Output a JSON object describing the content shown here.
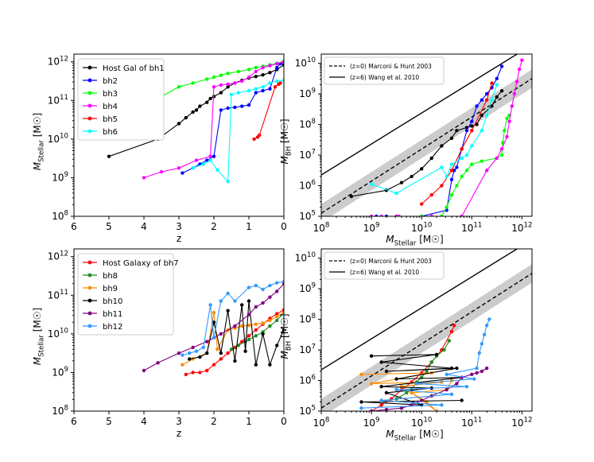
{
  "chart_data": [
    {
      "type": "line",
      "panel": "top-left",
      "xlabel": "z",
      "ylabel_main": "M",
      "ylabel_sub": "Stellar",
      "ylabel_unit": "[M☉]",
      "x_reversed": true,
      "xlim": [
        6,
        0
      ],
      "ylim_log10": [
        8,
        12.2
      ],
      "x_ticks": [
        "6",
        "5",
        "4",
        "3",
        "2",
        "1",
        "0"
      ],
      "y_ticks": [
        {
          "base": "10",
          "exp": "8"
        },
        {
          "base": "10",
          "exp": "9"
        },
        {
          "base": "10",
          "exp": "10"
        },
        {
          "base": "10",
          "exp": "11"
        },
        {
          "base": "10",
          "exp": "12"
        }
      ],
      "legend_position": "upper-left",
      "series": [
        {
          "name": "Host Gal of bh1",
          "color": "#000000",
          "z": [
            5.0,
            3.6,
            3.0,
            2.8,
            2.6,
            2.5,
            2.4,
            2.2,
            2.1,
            2.0,
            1.8,
            1.6,
            1.4,
            1.2,
            1.0,
            0.8,
            0.6,
            0.4,
            0.2,
            0.0
          ],
          "log10M": [
            9.55,
            10.0,
            10.4,
            10.55,
            10.7,
            10.75,
            10.85,
            10.95,
            11.05,
            11.1,
            11.2,
            11.35,
            11.45,
            11.52,
            11.58,
            11.62,
            11.66,
            11.72,
            11.8,
            11.92
          ]
        },
        {
          "name": "bh2",
          "color": "#0000ff",
          "z": [
            2.9,
            2.6,
            2.4,
            2.2,
            2.0,
            1.8,
            1.6,
            1.4,
            1.2,
            1.0,
            0.8,
            0.6,
            0.4,
            0.2,
            0.1,
            0.0
          ],
          "log10M": [
            9.12,
            9.25,
            9.35,
            9.45,
            9.55,
            10.75,
            10.8,
            10.82,
            10.85,
            10.88,
            11.2,
            11.25,
            11.3,
            11.85,
            11.95,
            12.0
          ]
        },
        {
          "name": "bh3",
          "color": "#00ff00",
          "z": [
            5.0,
            4.0,
            3.5,
            3.0,
            2.6,
            2.2,
            2.0,
            1.8,
            1.6,
            1.3,
            1.0,
            0.8,
            0.6,
            0.4,
            0.2,
            0.0
          ],
          "log10M": [
            10.2,
            10.8,
            11.1,
            11.35,
            11.45,
            11.55,
            11.6,
            11.65,
            11.7,
            11.75,
            11.8,
            11.85,
            11.88,
            11.92,
            11.96,
            12.02
          ]
        },
        {
          "name": "bh4",
          "color": "#ff00ff",
          "z": [
            4.0,
            3.5,
            3.0,
            2.5,
            2.1,
            2.0,
            1.8,
            1.6,
            1.4,
            1.2,
            1.0,
            0.8,
            0.6,
            0.4,
            0.2,
            0.0
          ],
          "log10M": [
            9.0,
            9.15,
            9.25,
            9.45,
            9.55,
            11.35,
            11.4,
            11.42,
            11.45,
            11.5,
            11.6,
            11.75,
            11.85,
            11.9,
            11.95,
            12.0
          ]
        },
        {
          "name": "bh5",
          "color": "#ff0000",
          "z": [
            0.85,
            0.75,
            0.7,
            0.25,
            0.15,
            0.1
          ],
          "log10M": [
            10.0,
            10.05,
            10.1,
            11.35,
            11.42,
            11.45
          ]
        },
        {
          "name": "bh6",
          "color": "#00ffff",
          "z": [
            2.6,
            2.3,
            2.1,
            1.9,
            1.6,
            1.5,
            1.3,
            1.0,
            0.8,
            0.6,
            0.4,
            0.2,
            0.0
          ],
          "log10M": [
            9.25,
            9.35,
            9.45,
            9.2,
            8.9,
            11.15,
            11.2,
            11.25,
            11.3,
            11.35,
            11.45,
            11.5,
            11.52
          ]
        }
      ]
    },
    {
      "type": "line",
      "panel": "top-right",
      "xlabel_main": "M",
      "xlabel_sub": "Stellar",
      "xlabel_unit": "[M☉]",
      "ylabel_main": "M",
      "ylabel_sub": "BH",
      "ylabel_unit": "[M☉]",
      "xlim_log10": [
        8,
        12.2
      ],
      "ylim_log10": [
        5,
        10.3
      ],
      "x_ticks": [
        {
          "base": "10",
          "exp": "8"
        },
        {
          "base": "10",
          "exp": "9"
        },
        {
          "base": "10",
          "exp": "10"
        },
        {
          "base": "10",
          "exp": "11"
        },
        {
          "base": "10",
          "exp": "12"
        }
      ],
      "y_ticks": [
        {
          "base": "10",
          "exp": "5"
        },
        {
          "base": "10",
          "exp": "6"
        },
        {
          "base": "10",
          "exp": "7"
        },
        {
          "base": "10",
          "exp": "8"
        },
        {
          "base": "10",
          "exp": "9"
        },
        {
          "base": "10",
          "exp": "10"
        }
      ],
      "legend_position": "upper-left",
      "relations": [
        {
          "name": "(z=0) Marconi & Hunt 2003",
          "style": "dashed",
          "log10M": [
            8,
            12.2
          ],
          "log10BH": [
            5.1,
            9.5
          ],
          "scatter_dex": 0.3
        },
        {
          "name": "(z=6) Wang et al. 2010",
          "style": "solid",
          "log10M": [
            8,
            12.2
          ],
          "log10BH": [
            6.35,
            10.6
          ]
        }
      ],
      "series": [
        {
          "name": "bh1",
          "color": "#000000",
          "log10M": [
            8.6,
            9.3,
            9.6,
            9.8,
            10.0,
            10.2,
            10.4,
            10.6,
            10.7,
            10.9,
            11.0,
            11.1,
            11.2,
            11.4,
            11.5,
            11.6
          ],
          "log10BH": [
            5.65,
            5.85,
            6.1,
            6.3,
            6.55,
            6.9,
            7.3,
            7.55,
            7.8,
            7.9,
            7.95,
            8.0,
            8.3,
            8.6,
            8.9,
            9.1
          ]
        },
        {
          "name": "bh2",
          "color": "#0000ff",
          "log10M": [
            9.1,
            9.3,
            9.5,
            10.0,
            10.5,
            10.6,
            10.65,
            10.7,
            10.8,
            10.9,
            11.0,
            11.1,
            11.2,
            11.3,
            11.4,
            11.5,
            11.6
          ],
          "log10BH": [
            5.0,
            5.0,
            5.0,
            5.0,
            5.2,
            6.2,
            6.5,
            6.6,
            7.2,
            7.8,
            8.1,
            8.6,
            8.8,
            9.0,
            9.2,
            9.5,
            9.9
          ]
        },
        {
          "name": "bh3",
          "color": "#00ff00",
          "log10M": [
            9.5,
            10.0,
            10.4,
            10.5,
            10.6,
            10.7,
            10.8,
            10.9,
            11.0,
            11.2,
            11.5,
            11.6,
            11.62,
            11.65,
            11.7,
            11.75
          ],
          "log10BH": [
            5.0,
            5.0,
            5.0,
            5.3,
            5.7,
            6.0,
            6.3,
            6.5,
            6.7,
            6.8,
            6.9,
            7.0,
            7.4,
            7.8,
            8.2,
            8.3
          ]
        },
        {
          "name": "bh4",
          "color": "#ff00ff",
          "log10M": [
            9.0,
            9.2,
            9.5,
            9.55,
            10.2,
            10.8,
            11.3,
            11.5,
            11.6,
            11.7,
            11.75,
            11.8,
            11.85,
            11.9,
            11.95,
            12.0
          ],
          "log10BH": [
            5.0,
            5.0,
            5.0,
            5.0,
            5.0,
            5.0,
            6.5,
            6.9,
            7.2,
            7.6,
            8.1,
            8.6,
            9.0,
            9.4,
            9.8,
            10.1
          ]
        },
        {
          "name": "bh5",
          "color": "#ff0000",
          "log10M": [
            10.0,
            10.2,
            10.4,
            10.6,
            10.8,
            11.0,
            11.3,
            11.4
          ],
          "log10BH": [
            5.4,
            5.7,
            6.0,
            6.5,
            7.2,
            7.8,
            8.8,
            9.35
          ]
        },
        {
          "name": "bh6",
          "color": "#00ffff",
          "log10M": [
            9.0,
            9.5,
            10.4,
            10.5,
            10.6,
            10.8,
            10.9,
            11.0,
            11.2,
            11.3,
            11.4,
            11.5
          ],
          "log10BH": [
            6.05,
            5.75,
            6.6,
            6.3,
            6.7,
            6.9,
            7.0,
            7.3,
            7.8,
            8.3,
            8.8,
            9.3
          ]
        }
      ]
    },
    {
      "type": "line",
      "panel": "bottom-left",
      "xlabel": "z",
      "ylabel_main": "M",
      "ylabel_sub": "Stellar",
      "ylabel_unit": "[M☉]",
      "x_reversed": true,
      "xlim": [
        6,
        0
      ],
      "ylim_log10": [
        8,
        12.2
      ],
      "x_ticks": [
        "6",
        "5",
        "4",
        "3",
        "2",
        "1",
        "0"
      ],
      "y_ticks": [
        {
          "base": "10",
          "exp": "8"
        },
        {
          "base": "10",
          "exp": "9"
        },
        {
          "base": "10",
          "exp": "10"
        },
        {
          "base": "10",
          "exp": "11"
        },
        {
          "base": "10",
          "exp": "12"
        }
      ],
      "legend_position": "upper-left",
      "series": [
        {
          "name": "Host Galaxy of bh7",
          "color": "#ff0000",
          "z": [
            2.8,
            2.6,
            2.4,
            2.2,
            2.0,
            1.8,
            1.6,
            1.4,
            1.2,
            1.0,
            0.8,
            0.6,
            0.4,
            0.2,
            0.0
          ],
          "log10M": [
            8.95,
            9.0,
            9.0,
            9.05,
            9.2,
            9.35,
            9.5,
            9.65,
            9.8,
            9.95,
            10.1,
            10.25,
            10.4,
            10.52,
            10.62
          ]
        },
        {
          "name": "bh8",
          "color": "#228b22",
          "z": [
            1.5,
            1.3,
            1.1,
            1.0,
            0.8,
            0.6,
            0.4,
            0.2,
            0.0
          ],
          "log10M": [
            9.6,
            9.7,
            9.8,
            9.85,
            9.95,
            10.05,
            10.2,
            10.35,
            10.55
          ]
        },
        {
          "name": "bh9",
          "color": "#ff8c00",
          "z": [
            2.9,
            2.6,
            2.2,
            2.0,
            1.9,
            1.6,
            1.4,
            1.2,
            1.0,
            0.8,
            0.6,
            0.4,
            0.2,
            0.0
          ],
          "log10M": [
            9.2,
            9.35,
            9.5,
            10.55,
            9.6,
            10.1,
            10.15,
            10.2,
            10.22,
            10.25,
            10.28,
            10.35,
            10.45,
            10.55
          ]
        },
        {
          "name": "bh10",
          "color": "#000000",
          "z": [
            2.7,
            2.4,
            2.2,
            2.0,
            1.8,
            1.6,
            1.4,
            1.2,
            1.1,
            1.0,
            0.8,
            0.6,
            0.4,
            0.2,
            0.0
          ],
          "log10M": [
            9.35,
            9.4,
            9.5,
            10.3,
            9.5,
            10.6,
            9.3,
            10.75,
            9.55,
            10.85,
            9.2,
            10.0,
            9.2,
            9.7,
            10.1
          ]
        },
        {
          "name": "bh11",
          "color": "#800080",
          "z": [
            4.0,
            3.6,
            3.0,
            2.6,
            2.2,
            1.8,
            1.4,
            1.0,
            0.8,
            0.6,
            0.4,
            0.2,
            0.0
          ],
          "log10M": [
            9.05,
            9.25,
            9.5,
            9.65,
            9.8,
            10.0,
            10.2,
            10.5,
            10.7,
            10.8,
            10.95,
            11.1,
            11.3
          ]
        },
        {
          "name": "bh12",
          "color": "#3399ff",
          "z": [
            2.9,
            2.7,
            2.5,
            2.3,
            2.1,
            2.0,
            1.8,
            1.6,
            1.4,
            1.0,
            0.8,
            0.6,
            0.4,
            0.2,
            0.0
          ],
          "log10M": [
            9.45,
            9.5,
            9.55,
            9.65,
            10.75,
            9.9,
            10.85,
            11.05,
            10.85,
            11.2,
            11.25,
            11.15,
            11.25,
            11.32,
            11.35
          ]
        }
      ]
    },
    {
      "type": "line",
      "panel": "bottom-right",
      "xlabel_main": "M",
      "xlabel_sub": "Stellar",
      "xlabel_unit": "[M☉]",
      "ylabel_main": "M",
      "ylabel_sub": "BH",
      "ylabel_unit": "[M☉]",
      "xlim_log10": [
        8,
        12.2
      ],
      "ylim_log10": [
        5,
        10.3
      ],
      "x_ticks": [
        {
          "base": "10",
          "exp": "8"
        },
        {
          "base": "10",
          "exp": "9"
        },
        {
          "base": "10",
          "exp": "10"
        },
        {
          "base": "10",
          "exp": "11"
        },
        {
          "base": "10",
          "exp": "12"
        }
      ],
      "y_ticks": [
        {
          "base": "10",
          "exp": "5"
        },
        {
          "base": "10",
          "exp": "6"
        },
        {
          "base": "10",
          "exp": "7"
        },
        {
          "base": "10",
          "exp": "8"
        },
        {
          "base": "10",
          "exp": "9"
        },
        {
          "base": "10",
          "exp": "10"
        }
      ],
      "legend_position": "upper-left",
      "relations": [
        {
          "name": "(z=0) Marconi & Hunt 2003",
          "style": "dashed",
          "log10M": [
            8,
            12.2
          ],
          "log10BH": [
            5.1,
            9.5
          ],
          "scatter_dex": 0.3
        },
        {
          "name": "(z=6) Wang et al. 2010",
          "style": "solid",
          "log10M": [
            8,
            12.2
          ],
          "log10BH": [
            6.35,
            10.6
          ]
        }
      ],
      "series": [
        {
          "name": "bh7",
          "color": "#ff0000",
          "log10M": [
            9.0,
            9.2,
            9.4,
            9.6,
            9.8,
            10.0,
            10.2,
            10.4,
            10.6,
            10.65
          ],
          "log10BH": [
            5.0,
            5.2,
            5.4,
            5.7,
            5.95,
            6.25,
            6.6,
            7.0,
            7.6,
            7.8
          ]
        },
        {
          "name": "bh8",
          "color": "#228b22",
          "log10M": [
            9.5,
            9.7,
            9.8,
            9.9,
            10.0,
            10.1,
            10.2,
            10.3,
            10.45,
            10.55
          ],
          "log10BH": [
            5.4,
            5.6,
            5.7,
            5.95,
            6.1,
            6.3,
            6.6,
            6.8,
            7.0,
            7.3
          ]
        },
        {
          "name": "bh9",
          "color": "#ff8c00",
          "log10M": [
            8.8,
            10.2,
            9.0,
            10.4,
            9.6,
            10.1,
            10.3,
            9.8,
            10.5,
            10.6
          ],
          "log10BH": [
            6.2,
            6.25,
            5.9,
            5.95,
            5.8,
            5.3,
            5.0,
            5.6,
            5.7,
            6.0
          ]
        },
        {
          "name": "bh10",
          "color": "#000000",
          "log10M": [
            9.0,
            10.3,
            9.2,
            10.6,
            9.3,
            10.7,
            9.5,
            10.8,
            9.2,
            10.2,
            9.3,
            10.0,
            8.8,
            10.8
          ],
          "log10BH": [
            6.8,
            6.85,
            6.6,
            6.4,
            6.3,
            6.4,
            6.05,
            6.1,
            5.8,
            5.75,
            5.6,
            5.2,
            5.3,
            5.35
          ]
        },
        {
          "name": "bh11",
          "color": "#800080",
          "log10M": [
            9.0,
            9.3,
            9.6,
            9.8,
            10.0,
            10.2,
            10.5,
            10.7,
            10.8,
            11.0,
            11.1,
            11.2,
            11.3
          ],
          "log10BH": [
            5.0,
            5.05,
            5.1,
            5.2,
            5.35,
            5.5,
            5.7,
            5.9,
            6.1,
            6.2,
            6.25,
            6.3,
            6.4
          ]
        },
        {
          "name": "bh12",
          "color": "#3399ff",
          "log10M": [
            8.8,
            10.4,
            9.2,
            10.6,
            9.5,
            10.9,
            9.9,
            11.05,
            10.5,
            11.1,
            11.15,
            11.2,
            11.25,
            11.3,
            11.35
          ],
          "log10BH": [
            5.1,
            5.2,
            5.35,
            5.55,
            5.7,
            5.8,
            5.9,
            6.05,
            6.2,
            6.4,
            6.9,
            7.2,
            7.5,
            7.8,
            8.0
          ]
        }
      ]
    }
  ]
}
